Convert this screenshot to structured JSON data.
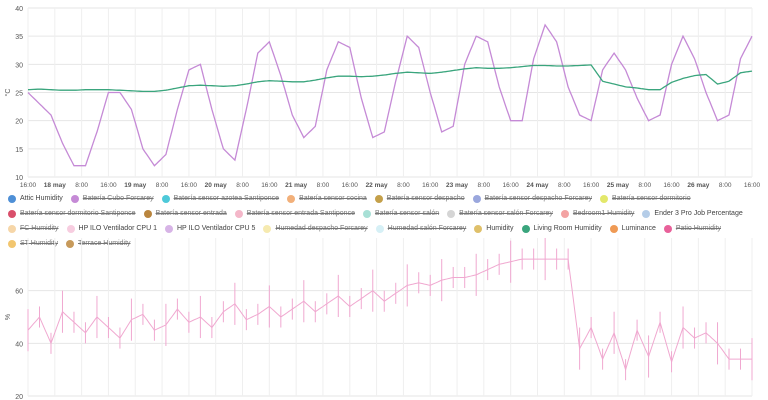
{
  "chart_data": [
    {
      "type": "line",
      "ylabel": "°C",
      "ylim": [
        10,
        40
      ],
      "yticks": [
        10,
        15,
        20,
        25,
        30,
        35,
        40
      ],
      "xticks": [
        "16:00",
        "18 may",
        "8:00",
        "16:00",
        "19 may",
        "8:00",
        "16:00",
        "20 may",
        "8:00",
        "16:00",
        "21 may",
        "8:00",
        "16:00",
        "22 may",
        "8:00",
        "16:00",
        "23 may",
        "8:00",
        "16:00",
        "24 may",
        "8:00",
        "16:00",
        "25 may",
        "8:00",
        "16:00",
        "26 may",
        "8:00",
        "16:00"
      ],
      "grid": true,
      "series": [
        {
          "name": "Batería Cubo Forcarey",
          "color": "#c58ad6",
          "values": [
            25,
            23,
            21,
            16,
            12,
            12,
            18,
            25,
            25,
            22,
            15,
            12,
            14,
            22,
            29,
            30,
            22,
            15,
            13,
            22,
            32,
            34,
            28,
            21,
            17,
            19,
            29,
            34,
            33,
            24,
            17,
            18,
            27,
            35,
            33,
            25,
            18,
            19,
            30,
            35,
            34,
            26,
            20,
            20,
            31,
            37,
            34,
            26,
            21,
            20,
            29,
            32,
            29,
            24,
            20,
            21,
            30,
            35,
            31,
            25,
            20,
            21,
            31,
            35
          ]
        },
        {
          "name": "Living Room Humidity",
          "color": "#3aa57d",
          "values": [
            25.5,
            25.6,
            25.5,
            25.4,
            25.4,
            25.5,
            25.5,
            25.5,
            25.4,
            25.3,
            25.2,
            25.2,
            25.4,
            25.8,
            26.2,
            26.3,
            26.2,
            26.1,
            26.2,
            26.5,
            26.9,
            27.1,
            27.0,
            26.9,
            26.9,
            27.2,
            27.6,
            27.9,
            27.9,
            27.8,
            27.9,
            28.1,
            28.4,
            28.6,
            28.5,
            28.4,
            28.6,
            28.9,
            29.2,
            29.4,
            29.3,
            29.3,
            29.4,
            29.6,
            29.8,
            29.8,
            29.7,
            29.7,
            29.8,
            29.9,
            27.0,
            26.5,
            26.0,
            25.8,
            25.5,
            25.5,
            26.8,
            27.5,
            28.0,
            28.2,
            26.5,
            27.0,
            28.5,
            28.8
          ]
        }
      ]
    },
    {
      "type": "line",
      "ylabel": "%",
      "ylim": [
        20,
        80
      ],
      "yticks": [
        20,
        40,
        60
      ],
      "grid": true,
      "series": [
        {
          "name": "HP ILO Ventilador CPU 1",
          "color": "#f0a8d0",
          "values": [
            45,
            50,
            40,
            52,
            48,
            44,
            50,
            46,
            42,
            49,
            51,
            45,
            47,
            53,
            48,
            50,
            46,
            52,
            55,
            49,
            51,
            54,
            50,
            53,
            56,
            52,
            55,
            58,
            54,
            57,
            60,
            56,
            59,
            62,
            63,
            62,
            64,
            65,
            65,
            66,
            68,
            70,
            71,
            72,
            72,
            72,
            72,
            72,
            38,
            46,
            34,
            44,
            30,
            45,
            35,
            48,
            33,
            46,
            42,
            44,
            40,
            34,
            34,
            34
          ]
        }
      ]
    }
  ],
  "legend": {
    "items": [
      {
        "label": "Attic Humidity",
        "color": "#4e8fd6",
        "hidden": false
      },
      {
        "label": "Batería Cubo Forcarey",
        "color": "#c58ad6",
        "hidden": true
      },
      {
        "label": "Batería sensor azotea Santiponce",
        "color": "#4ec9d9",
        "hidden": true
      },
      {
        "label": "Batería sensor cocina",
        "color": "#f2b07a",
        "hidden": true
      },
      {
        "label": "Batería sensor despacho",
        "color": "#c4a04a",
        "hidden": true
      },
      {
        "label": "Batería sensor despacho Forcarey",
        "color": "#9aa7dd",
        "hidden": true
      },
      {
        "label": "Batería sensor dormitorio",
        "color": "#e3e86b",
        "hidden": true
      },
      {
        "label": "Batería sensor dormitorio Santiponce",
        "color": "#d94f6b",
        "hidden": true
      },
      {
        "label": "Batería sensor entrada",
        "color": "#b9853e",
        "hidden": true
      },
      {
        "label": "Batería sensor entrada Santiponce",
        "color": "#f4b7c9",
        "hidden": true
      },
      {
        "label": "Batería sensor salón",
        "color": "#a8e0d6",
        "hidden": true
      },
      {
        "label": "Batería sensor salón Forcarey",
        "color": "#d5d5d5",
        "hidden": true
      },
      {
        "label": "Bedroom1 Humidity",
        "color": "#f3a3a3",
        "hidden": true
      },
      {
        "label": "Ender 3 Pro Job Percentage",
        "color": "#b5cde8",
        "hidden": false
      },
      {
        "label": "FC Humidity",
        "color": "#f6d6a8",
        "hidden": true
      },
      {
        "label": "HP ILO Ventilador CPU 1",
        "color": "#f7cde0",
        "hidden": false
      },
      {
        "label": "HP ILO Ventilador CPU 5",
        "color": "#d7b4e6",
        "hidden": false
      },
      {
        "label": "Humedad despacho Forcarey",
        "color": "#f6eab0",
        "hidden": true
      },
      {
        "label": "Humedad salón Forcarey",
        "color": "#d6f0f6",
        "hidden": true
      },
      {
        "label": "Humidity",
        "color": "#dfc06a",
        "hidden": false
      },
      {
        "label": "Living Room Humidity",
        "color": "#3aa57d",
        "hidden": false
      },
      {
        "label": "Luminance",
        "color": "#ef9a55",
        "hidden": false
      },
      {
        "label": "Patio Humidity",
        "color": "#e8619a",
        "hidden": true
      },
      {
        "label": "ST Humidity",
        "color": "#f2c66f",
        "hidden": true
      },
      {
        "label": "Terrace Humidity",
        "color": "#c79a5b",
        "hidden": true
      }
    ]
  }
}
